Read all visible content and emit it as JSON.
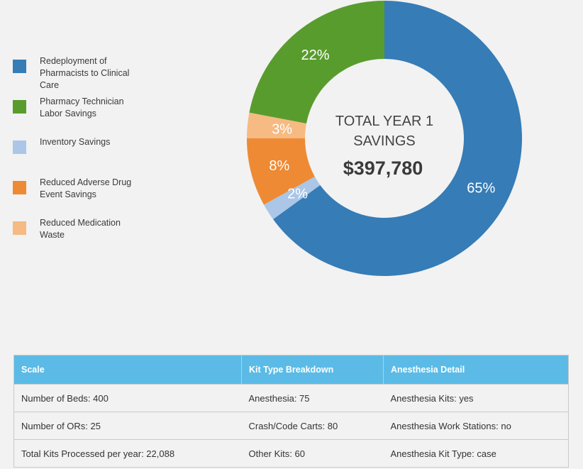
{
  "chart_data": {
    "type": "pie",
    "variant": "donut",
    "center_title": [
      "TOTAL YEAR 1",
      "SAVINGS"
    ],
    "center_value": "$397,780",
    "legend_position": "left",
    "series": [
      {
        "name": "Redeployment of Pharmacists to Clinical Care",
        "value": 65,
        "label": "65%",
        "color": "#367cb6"
      },
      {
        "name": "Inventory Savings",
        "value": 2,
        "label": "2%",
        "color": "#abc6e6"
      },
      {
        "name": "Reduced Adverse Drug Event Savings",
        "value": 8,
        "label": "8%",
        "color": "#ee8a34"
      },
      {
        "name": "Reduced Medication Waste",
        "value": 3,
        "label": "3%",
        "color": "#f6ba83"
      },
      {
        "name": "Pharmacy Technician Labor Savings",
        "value": 22,
        "label": "22%",
        "color": "#599c2e"
      }
    ]
  },
  "legend": [
    {
      "label": "Redeployment of Pharmacists to Clinical Care",
      "color": "#367cb6"
    },
    {
      "label": "Pharmacy Technician Labor Savings",
      "color": "#599c2e"
    },
    {
      "label": "Inventory Savings",
      "color": "#abc6e6"
    },
    {
      "label": "Reduced Adverse Drug Event Savings",
      "color": "#ee8a34"
    },
    {
      "label": "Reduced Medication Waste",
      "color": "#f6ba83"
    }
  ],
  "table": {
    "headers": [
      "Scale",
      "Kit Type Breakdown",
      "Anesthesia Detail"
    ],
    "rows": [
      [
        "Number of Beds: 400",
        "Anesthesia: 75",
        "Anesthesia Kits: yes"
      ],
      [
        "Number of ORs: 25",
        "Crash/Code Carts: 80",
        "Anesthesia Work Stations: no"
      ],
      [
        "Total Kits Processed per year: 22,088",
        "Other Kits: 60",
        "Anesthesia Kit Type: case"
      ]
    ]
  },
  "colors": {
    "table_header": "#5bbbe6",
    "background": "#f2f2f2"
  }
}
